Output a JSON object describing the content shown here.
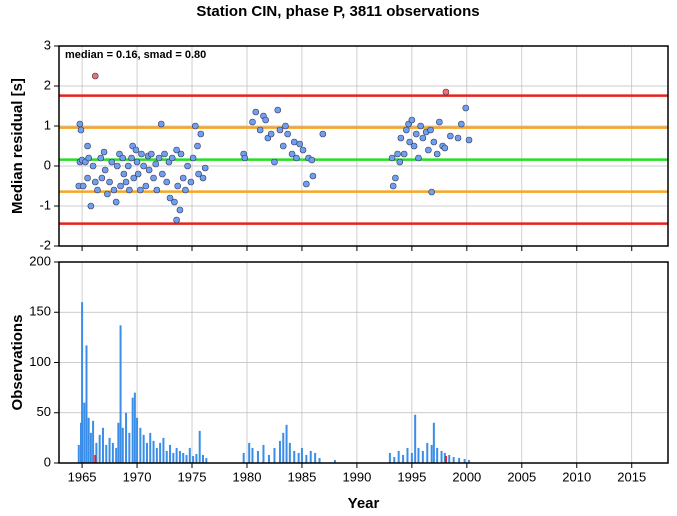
{
  "chart_data": [
    {
      "type": "scatter",
      "title": "Station CIN, phase P, 3811 observations",
      "annotation": "median = 0.16, smad = 0.80",
      "ylabel": "Median residual [s]",
      "xlim": [
        1962.9,
        2018.3
      ],
      "ylim": [
        -2,
        3
      ],
      "xticks": [
        1965,
        1970,
        1975,
        1980,
        1985,
        1990,
        1995,
        2000,
        2005,
        2010,
        2015
      ],
      "yticks": [
        -2,
        -1,
        0,
        1,
        2,
        3
      ],
      "grid": true,
      "hlines": [
        {
          "value": 0.16,
          "color": "#22e022"
        },
        {
          "value": 0.96,
          "color": "#f5a623"
        },
        {
          "value": -0.64,
          "color": "#f5a623"
        },
        {
          "value": 1.76,
          "color": "#e82020"
        },
        {
          "value": -1.44,
          "color": "#e82020"
        }
      ],
      "series": [
        {
          "color": "#6fa0f0",
          "x": [
            1964.8,
            1964.9,
            1964.8,
            1965.0,
            1964.7,
            1965.1,
            1965.3,
            1965.5,
            1965.6,
            1965.5,
            1965.8,
            1966.0,
            1966.2,
            1966.4,
            1966.7,
            1966.8,
            1967.0,
            1967.1,
            1967.3,
            1967.5,
            1967.7,
            1967.9,
            1968.1,
            1968.2,
            1968.4,
            1968.5,
            1968.7,
            1968.8,
            1969.0,
            1969.2,
            1969.3,
            1969.5,
            1969.6,
            1969.7,
            1969.9,
            1970.0,
            1970.1,
            1970.3,
            1970.4,
            1970.6,
            1970.8,
            1971.0,
            1971.1,
            1971.3,
            1971.5,
            1971.7,
            1971.8,
            1972.0,
            1972.2,
            1972.3,
            1972.5,
            1972.7,
            1972.9,
            1973.0,
            1973.2,
            1973.4,
            1973.6,
            1973.7,
            1973.9,
            1974.0,
            1974.2,
            1974.4,
            1974.6,
            1974.9,
            1975.1,
            1975.3,
            1975.5,
            1975.6,
            1975.8,
            1976.0,
            1976.2,
            1973.6,
            1979.7,
            1979.8,
            1980.5,
            1980.8,
            1981.2,
            1981.5,
            1981.7,
            1981.9,
            1982.2,
            1982.5,
            1982.8,
            1983.0,
            1983.3,
            1983.5,
            1983.7,
            1984.1,
            1984.3,
            1984.5,
            1984.8,
            1985.1,
            1985.4,
            1985.6,
            1985.9,
            1986.0,
            1986.9,
            1993.2,
            1993.3,
            1993.5,
            1993.7,
            1993.9,
            1994.0,
            1994.3,
            1994.5,
            1994.7,
            1994.8,
            1995.0,
            1995.2,
            1995.4,
            1995.6,
            1995.8,
            1996.0,
            1996.3,
            1996.5,
            1996.7,
            1996.8,
            1997.0,
            1997.3,
            1997.5,
            1997.8,
            1998.0,
            1998.5,
            1999.2,
            1999.5,
            1999.9,
            2000.2
          ],
          "values": [
            1.05,
            0.9,
            0.1,
            0.15,
            -0.5,
            -0.5,
            0.1,
            0.5,
            0.2,
            -0.3,
            -1.0,
            0.0,
            -0.4,
            -0.6,
            0.2,
            -0.3,
            0.35,
            -0.1,
            -0.7,
            -0.4,
            0.1,
            -0.6,
            -0.9,
            0.0,
            0.3,
            -0.5,
            0.2,
            -0.2,
            -0.4,
            0.0,
            -0.6,
            0.2,
            0.5,
            -0.3,
            0.4,
            0.1,
            -0.2,
            -0.6,
            0.3,
            0.0,
            -0.5,
            0.25,
            -0.1,
            0.3,
            -0.3,
            0.05,
            -0.6,
            0.2,
            1.05,
            -0.2,
            0.3,
            -0.4,
            0.1,
            -0.8,
            0.2,
            -0.9,
            0.4,
            -0.5,
            -1.1,
            0.3,
            -0.3,
            -0.6,
            0.0,
            -0.4,
            0.2,
            1.0,
            0.5,
            -0.2,
            0.8,
            -0.3,
            -0.05,
            -1.35,
            0.3,
            0.2,
            1.1,
            1.35,
            0.9,
            1.25,
            1.15,
            0.7,
            0.8,
            0.1,
            1.4,
            0.9,
            0.5,
            1.0,
            0.8,
            0.3,
            0.6,
            0.2,
            0.55,
            0.4,
            -0.45,
            0.2,
            0.15,
            -0.25,
            0.8,
            0.2,
            -0.5,
            -0.3,
            0.3,
            0.1,
            0.7,
            0.3,
            0.9,
            1.05,
            0.6,
            1.15,
            0.5,
            0.8,
            0.2,
            1.0,
            0.7,
            0.85,
            0.4,
            0.9,
            -0.65,
            0.6,
            0.3,
            1.1,
            0.5,
            0.45,
            0.75,
            0.7,
            1.05,
            1.45,
            0.65
          ]
        },
        {
          "color": "#f07070",
          "x": [
            1966.2,
            1998.1
          ],
          "values": [
            2.25,
            1.85
          ]
        }
      ]
    },
    {
      "type": "bar",
      "xlabel": "Year",
      "ylabel": "Observations",
      "xlim": [
        1962.9,
        2018.3
      ],
      "ylim": [
        0,
        200
      ],
      "xticks": [
        1965,
        1970,
        1975,
        1980,
        1985,
        1990,
        1995,
        2000,
        2005,
        2010,
        2015
      ],
      "yticks": [
        0,
        50,
        100,
        150,
        200
      ],
      "grid": true,
      "series": [
        {
          "color": "#3a8ee8",
          "x": [
            1964.7,
            1964.9,
            1965.0,
            1965.2,
            1965.4,
            1965.6,
            1965.8,
            1966.0,
            1966.3,
            1966.6,
            1966.9,
            1967.2,
            1967.5,
            1967.8,
            1968.1,
            1968.3,
            1968.5,
            1968.7,
            1969.0,
            1969.3,
            1969.6,
            1969.8,
            1970.0,
            1970.3,
            1970.6,
            1970.9,
            1971.2,
            1971.5,
            1971.8,
            1972.1,
            1972.4,
            1972.7,
            1973.0,
            1973.3,
            1973.6,
            1973.9,
            1974.2,
            1974.5,
            1974.8,
            1975.1,
            1975.4,
            1975.7,
            1976.0,
            1976.3,
            1979.7,
            1980.2,
            1980.5,
            1981.0,
            1981.5,
            1982.0,
            1982.5,
            1983.0,
            1983.3,
            1983.6,
            1983.9,
            1984.3,
            1984.7,
            1985.0,
            1985.4,
            1985.8,
            1986.2,
            1986.6,
            1988.0,
            1993.0,
            1993.4,
            1993.8,
            1994.2,
            1994.6,
            1995.0,
            1995.3,
            1995.6,
            1996.0,
            1996.4,
            1996.8,
            1997.0,
            1997.3,
            1997.7,
            1998.0,
            1998.4,
            1998.8,
            1999.3,
            1999.8,
            2000.2
          ],
          "values": [
            18,
            40,
            160,
            60,
            117,
            45,
            30,
            42,
            20,
            28,
            35,
            18,
            25,
            20,
            15,
            40,
            137,
            35,
            50,
            30,
            65,
            70,
            45,
            35,
            28,
            20,
            30,
            22,
            15,
            20,
            25,
            12,
            18,
            10,
            15,
            12,
            10,
            8,
            15,
            7,
            9,
            32,
            8,
            5,
            10,
            20,
            15,
            12,
            18,
            8,
            15,
            22,
            30,
            38,
            20,
            12,
            10,
            15,
            8,
            12,
            10,
            5,
            3,
            10,
            6,
            12,
            8,
            15,
            10,
            48,
            15,
            12,
            20,
            18,
            40,
            15,
            12,
            10,
            8,
            6,
            5,
            4,
            3
          ]
        },
        {
          "color": "#e82020",
          "x": [
            1966.2,
            1998.1
          ],
          "values": [
            8,
            7
          ]
        }
      ]
    }
  ]
}
